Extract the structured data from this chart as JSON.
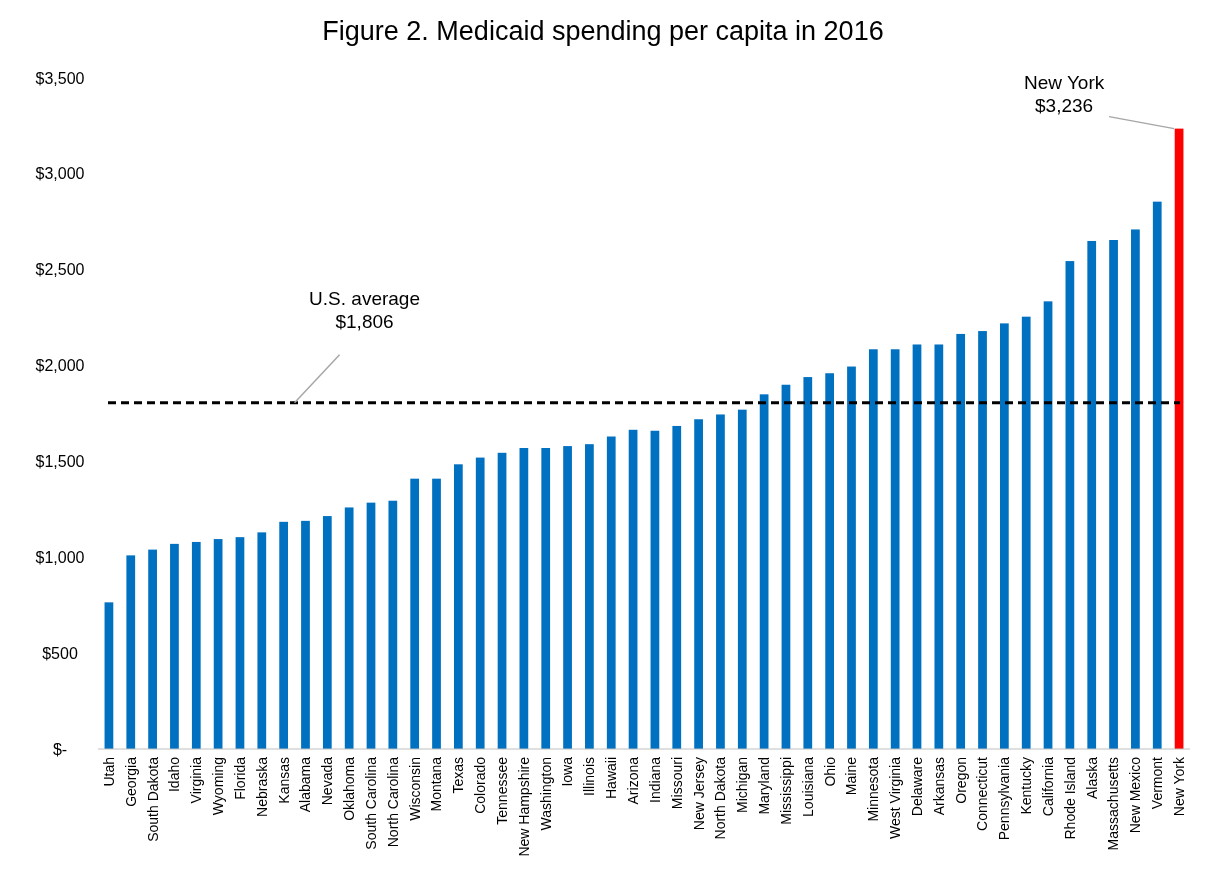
{
  "chart_data": {
    "type": "bar",
    "title": "Figure 2. Medicaid spending per capita in 2016",
    "categories": [
      "Utah",
      "Georgia",
      "South Dakota",
      "Idaho",
      "Virginia",
      "Wyoming",
      "Florida",
      "Nebraska",
      "Kansas",
      "Alabama",
      "Nevada",
      "Oklahoma",
      "South Carolina",
      "North Carolina",
      "Wisconsin",
      "Montana",
      "Texas",
      "Colorado",
      "Tennessee",
      "New Hampshire",
      "Washington",
      "Iowa",
      "Illinois",
      "Hawaii",
      "Arizona",
      "Indiana",
      "Missouri",
      "New Jersey",
      "North Dakota",
      "Michigan",
      "Maryland",
      "Mississippi",
      "Louisiana",
      "Ohio",
      "Maine",
      "Minnesota",
      "West Virginia",
      "Delaware",
      "Arkansas",
      "Oregon",
      "Connecticut",
      "Pennsylvania",
      "Kentucky",
      "California",
      "Rhode Island",
      "Alaska",
      "Massachusetts",
      "New Mexico",
      "Vermont",
      "New York"
    ],
    "values": [
      765,
      1010,
      1040,
      1070,
      1080,
      1095,
      1105,
      1130,
      1185,
      1190,
      1215,
      1260,
      1285,
      1295,
      1410,
      1410,
      1485,
      1520,
      1545,
      1570,
      1570,
      1580,
      1590,
      1630,
      1665,
      1660,
      1685,
      1720,
      1745,
      1770,
      1850,
      1900,
      1940,
      1960,
      1995,
      2085,
      2085,
      2110,
      2110,
      2165,
      2180,
      2220,
      2255,
      2335,
      2545,
      2650,
      2655,
      2710,
      2855,
      3236
    ],
    "colors": [
      "#0070c0",
      "#0070c0",
      "#0070c0",
      "#0070c0",
      "#0070c0",
      "#0070c0",
      "#0070c0",
      "#0070c0",
      "#0070c0",
      "#0070c0",
      "#0070c0",
      "#0070c0",
      "#0070c0",
      "#0070c0",
      "#0070c0",
      "#0070c0",
      "#0070c0",
      "#0070c0",
      "#0070c0",
      "#0070c0",
      "#0070c0",
      "#0070c0",
      "#0070c0",
      "#0070c0",
      "#0070c0",
      "#0070c0",
      "#0070c0",
      "#0070c0",
      "#0070c0",
      "#0070c0",
      "#0070c0",
      "#0070c0",
      "#0070c0",
      "#0070c0",
      "#0070c0",
      "#0070c0",
      "#0070c0",
      "#0070c0",
      "#0070c0",
      "#0070c0",
      "#0070c0",
      "#0070c0",
      "#0070c0",
      "#0070c0",
      "#0070c0",
      "#0070c0",
      "#0070c0",
      "#0070c0",
      "#0070c0",
      "#ff0000"
    ],
    "ylim": [
      0,
      3500
    ],
    "yticks": [
      {
        "value": 0,
        "label": "$-"
      },
      {
        "value": 500,
        "label": "$500"
      },
      {
        "value": 1000,
        "label": "$1,000"
      },
      {
        "value": 1500,
        "label": "$1,500"
      },
      {
        "value": 2000,
        "label": "$2,000"
      },
      {
        "value": 2500,
        "label": "$2,500"
      },
      {
        "value": 3000,
        "label": "$3,000"
      },
      {
        "value": 3500,
        "label": "$3,500"
      }
    ],
    "ref_lines": [
      {
        "axis": "y",
        "value": 1806,
        "label": "U.S. average\n$1,806",
        "color": "#000000",
        "line_style": "dashed"
      }
    ],
    "annotations": [
      {
        "text": "New York\n$3,236",
        "x": "New York",
        "y": 3236
      }
    ],
    "grid": false
  }
}
